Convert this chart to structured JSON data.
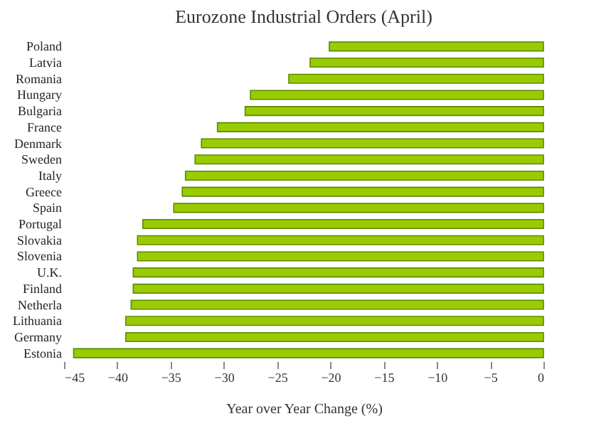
{
  "chart_data": {
    "type": "bar",
    "orientation": "horizontal",
    "title": "Eurozone Industrial Orders (April)",
    "xlabel": "Year over Year Change (%)",
    "categories": [
      "Poland",
      "Latvia",
      "Romania",
      "Hungary",
      "Bulgaria",
      "France",
      "Denmark",
      "Sweden",
      "Italy",
      "Greece",
      "Spain",
      "Portugal",
      "Slovakia",
      "Slovenia",
      "U.K.",
      "Finland",
      "Netherla",
      "Lithuania",
      "Germany",
      "Estonia"
    ],
    "values": [
      -20.1,
      -21.9,
      -23.9,
      -27.5,
      -28.0,
      -30.6,
      -32.1,
      -32.7,
      -33.6,
      -33.9,
      -34.7,
      -37.6,
      -38.1,
      -38.1,
      -38.5,
      -38.5,
      -38.7,
      -39.2,
      -39.2,
      -44.1
    ],
    "color": "#99cc00",
    "xlim": [
      -45,
      0
    ],
    "xticks": [
      -45,
      -40,
      -35,
      -30,
      -25,
      -20,
      -15,
      -10,
      -5,
      0
    ],
    "grid": false
  }
}
